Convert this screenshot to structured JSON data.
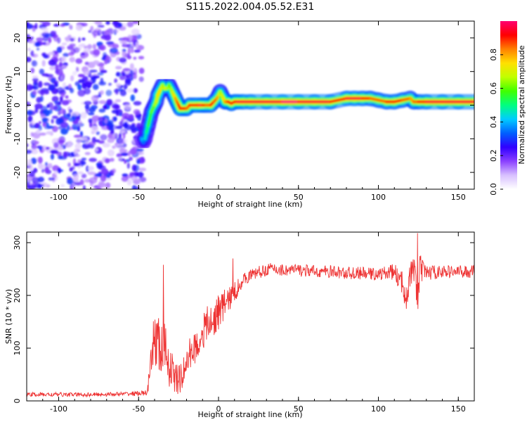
{
  "figure_title": "S115.2022.004.05.52.E31",
  "colors": {
    "snr_line": "#ee3333",
    "spectral_ridge": "#ff3030",
    "spectral_mid": "#18d0f0",
    "spectral_low": "#5a00ff",
    "colorbar_stops": [
      "#ffffff",
      "#d8c0ff",
      "#8a40ff",
      "#3000ff",
      "#0060ff",
      "#00ccff",
      "#00ff80",
      "#40ff00",
      "#c0ff00",
      "#ffe000",
      "#ff8000",
      "#ff0000",
      "#ff0070"
    ]
  },
  "chart_data": [
    {
      "type": "heatmap",
      "title": "",
      "xlabel": "Height of straight line (km)",
      "ylabel": "Frequency (Hz)",
      "xlim": [
        -120,
        160
      ],
      "ylim": [
        -25,
        25
      ],
      "xticks": [
        -100,
        -50,
        0,
        50,
        100,
        150
      ],
      "yticks": [
        20,
        10,
        0,
        -10,
        -20
      ],
      "colorbar": {
        "label": "Normalized spectral amplitude",
        "range": [
          0.0,
          1.0
        ],
        "ticks": [
          0.0,
          0.2,
          0.4,
          0.6,
          0.8
        ]
      },
      "ridge": {
        "x": [
          -48,
          -47,
          -46,
          -45,
          -44,
          -43,
          -42,
          -41,
          -40,
          -39,
          -38,
          -37,
          -36,
          -35,
          -34,
          -33,
          -32,
          -31,
          -30,
          -29,
          -28,
          -27,
          -26,
          -25,
          -24,
          -22,
          -20,
          -18,
          -15,
          -12,
          -10,
          -8,
          -5,
          -3,
          -1,
          0,
          1,
          2,
          3,
          4,
          5,
          6,
          8,
          10,
          12,
          15,
          20,
          30,
          40,
          50,
          60,
          70,
          80,
          85,
          90,
          95,
          100,
          105,
          110,
          115,
          120,
          122,
          125,
          130,
          140,
          150,
          160
        ],
        "y": [
          -10,
          -11,
          -10,
          -8,
          -6,
          -4,
          -2,
          -1,
          0,
          1,
          3,
          4,
          5,
          6,
          5,
          5,
          5,
          6,
          5,
          4,
          3,
          2,
          1,
          0,
          -1,
          -1,
          -1,
          0,
          0,
          0,
          0,
          0,
          0,
          1,
          2,
          3,
          4,
          3,
          2,
          1,
          1,
          1,
          0.5,
          1,
          1,
          1,
          1,
          1,
          1,
          1,
          1,
          1,
          2,
          2,
          2,
          2,
          1.5,
          1,
          1,
          1.5,
          2,
          1,
          1,
          1,
          1,
          1,
          1
        ],
        "amplitude": [
          0.4,
          0.35,
          0.45,
          0.5,
          0.55,
          0.55,
          0.6,
          0.6,
          0.65,
          0.7,
          0.75,
          0.75,
          0.7,
          0.65,
          0.7,
          0.7,
          0.65,
          0.6,
          0.65,
          0.7,
          0.75,
          0.8,
          0.85,
          0.9,
          0.9,
          0.9,
          0.85,
          0.9,
          0.9,
          0.95,
          0.9,
          0.85,
          0.9,
          0.85,
          0.8,
          0.7,
          0.65,
          0.7,
          0.75,
          0.8,
          0.85,
          0.9,
          0.9,
          0.9,
          0.95,
          0.95,
          0.95,
          0.95,
          1.0,
          0.95,
          0.95,
          0.9,
          0.95,
          0.95,
          0.9,
          0.85,
          0.85,
          0.9,
          0.9,
          0.85,
          0.8,
          0.85,
          0.9,
          0.95,
          0.95,
          0.95,
          0.95
        ]
      },
      "noise_region": {
        "x_range": [
          -120,
          -47
        ],
        "y_range": [
          -25,
          25
        ],
        "amplitude_range": [
          0.05,
          0.3
        ]
      }
    },
    {
      "type": "line",
      "title": "",
      "xlabel": "Height of straight line (km)",
      "ylabel": "SNR (10 * v/v)",
      "xlim": [
        -120,
        160
      ],
      "ylim": [
        0,
        320
      ],
      "xticks": [
        -100,
        -50,
        0,
        50,
        100,
        150
      ],
      "yticks": [
        0,
        100,
        200,
        300
      ],
      "envelope": {
        "x": [
          -120,
          -100,
          -80,
          -60,
          -45,
          -43,
          -40,
          -38,
          -36,
          -34,
          -32,
          -30,
          -28,
          -26,
          -24,
          -22,
          -20,
          -18,
          -15,
          -12,
          -10,
          -8,
          -6,
          -4,
          -2,
          0,
          2,
          4,
          6,
          8,
          10,
          12,
          14,
          16,
          18,
          20,
          22,
          25,
          28,
          30,
          35,
          40,
          50,
          60,
          70,
          80,
          90,
          100,
          110,
          115,
          118,
          120,
          122,
          124,
          125,
          126,
          128,
          130,
          140,
          150,
          160
        ],
        "y": [
          12,
          12,
          12,
          13,
          15,
          40,
          130,
          110,
          90,
          100,
          80,
          60,
          50,
          40,
          40,
          55,
          70,
          90,
          100,
          110,
          130,
          140,
          150,
          140,
          160,
          170,
          175,
          185,
          190,
          200,
          205,
          215,
          225,
          230,
          235,
          238,
          240,
          245,
          245,
          250,
          250,
          248,
          248,
          245,
          245,
          242,
          242,
          240,
          245,
          220,
          205,
          240,
          250,
          210,
          200,
          250,
          245,
          243,
          245,
          245,
          245
        ],
        "noise_amplitude": [
          4,
          4,
          4,
          4,
          5,
          30,
          60,
          60,
          55,
          55,
          45,
          40,
          35,
          30,
          28,
          28,
          30,
          30,
          30,
          30,
          35,
          35,
          35,
          35,
          35,
          35,
          30,
          30,
          25,
          25,
          22,
          18,
          15,
          12,
          12,
          12,
          12,
          12,
          12,
          12,
          12,
          12,
          12,
          12,
          12,
          12,
          12,
          12,
          15,
          25,
          35,
          25,
          25,
          40,
          60,
          30,
          20,
          15,
          12,
          12,
          12
        ]
      },
      "peaks": [
        {
          "x": -34.5,
          "y": 258
        },
        {
          "x": 9,
          "y": 270
        },
        {
          "x": 124.5,
          "y": 318
        }
      ]
    }
  ]
}
